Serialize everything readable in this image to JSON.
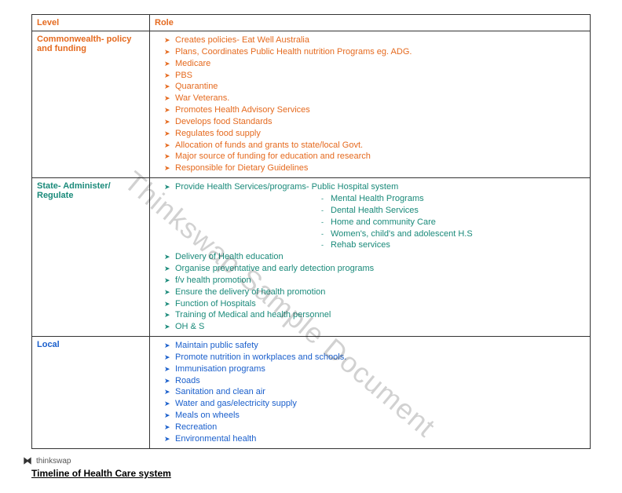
{
  "watermark_text": "Thinkswap Sample Document",
  "logo_text": "thinkswap",
  "table": {
    "headers": {
      "level": "Level",
      "role": "Role"
    },
    "rows": [
      {
        "level": "Commonwealth- policy and funding",
        "level_class": "commonwealth",
        "item_class": "commonwealth-items",
        "items": [
          "Creates policies- Eat Well Australia",
          "Plans, Coordinates Public Health nutrition Programs eg. ADG.",
          "Medicare",
          "PBS",
          "Quarantine",
          "War Veterans.",
          "Promotes Health Advisory Services",
          "Develops food Standards",
          "Regulates food supply",
          "Allocation of funds and grants to state/local Govt.",
          "Major source of funding for education and research",
          "Responsible for Dietary Guidelines"
        ],
        "sub_after_index": null,
        "sub_items": []
      },
      {
        "level": "State- Administer/ Regulate",
        "level_class": "state",
        "item_class": "state-items",
        "items": [
          "Provide Health Services/programs- Public Hospital system",
          "Delivery of Health education",
          "Organise preventative and early detection programs",
          "f/v health promotion",
          "Ensure the delivery of health promotion",
          "Function of Hospitals",
          "Training of Medical and health personnel",
          "OH & S"
        ],
        "sub_after_index": 0,
        "sub_items": [
          "Mental Health Programs",
          "Dental Health Services",
          "Home and community Care",
          "Women's, child's and adolescent H.S",
          "Rehab services"
        ]
      },
      {
        "level": "Local",
        "level_class": "local",
        "item_class": "local-items",
        "items": [
          "Maintain public safety",
          "Promote nutrition in workplaces and schools.",
          "Immunisation programs",
          "Roads",
          "Sanitation and clean air",
          "Water and gas/electricity supply",
          "Meals on wheels",
          "Recreation",
          "Environmental health"
        ],
        "sub_after_index": null,
        "sub_items": []
      }
    ]
  },
  "footer_title": "Timeline of Health Care system",
  "colors": {
    "commonwealth": "#e56a1f",
    "state": "#1a8a7a",
    "local": "#1a5fcc",
    "border": "#333333",
    "background": "#ffffff"
  },
  "typography": {
    "base_fontsize": 11,
    "header_fontsize": 11,
    "footer_fontsize": 12
  }
}
